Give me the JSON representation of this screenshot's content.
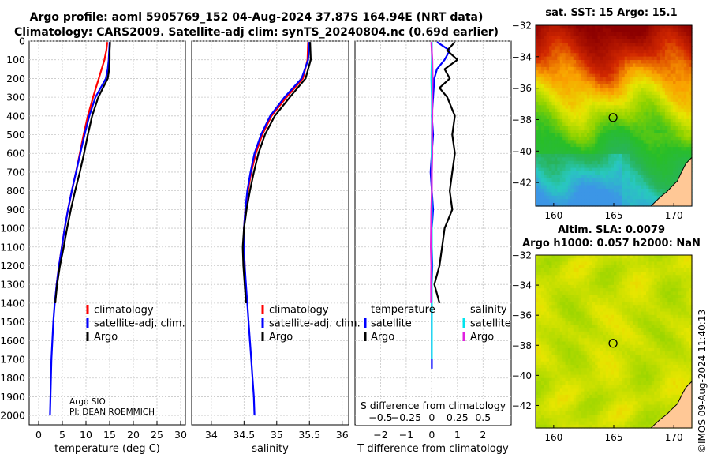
{
  "titles": {
    "line1": "Argo profile: aoml 5905769_152 04-Aug-2024 37.87S 164.94E (NRT data)",
    "line2": "Climatology: CARS2009. Satellite-adj clim: synTS_20240804.nc (0.69d earlier)",
    "sst_map": "sat. SST: 15 Argo: 15.1",
    "sla_line1": "Altim. SLA: 0.0079",
    "sla_line2": "Argo h1000: 0.057 h2000: NaN"
  },
  "stamp": "©IMOS 09-Aug-2024 11:40:13",
  "colors": {
    "argo": "#000000",
    "climatology": "#ff0000",
    "satellite": "#0000ff",
    "sat_temp_diff": "#0000ff",
    "sat_sal_diff": "#00e5ee",
    "argo_sal_diff": "#e020e0"
  },
  "chart_data": [
    {
      "type": "line",
      "id": "temperature",
      "xlabel": "temperature (deg C)",
      "ylabel": "",
      "xlim": [
        -2,
        31
      ],
      "ylim": [
        2050,
        0
      ],
      "xticks": [
        0,
        5,
        10,
        15,
        20,
        25,
        30
      ],
      "yticks": [
        0,
        100,
        200,
        300,
        400,
        500,
        600,
        700,
        800,
        900,
        1000,
        1100,
        1200,
        1300,
        1400,
        1500,
        1600,
        1700,
        1800,
        1900,
        2000
      ],
      "annotation": [
        "Argo SIO",
        "PI: DEAN ROEMMICH"
      ],
      "legend": [
        "climatology",
        "satellite-adj. clim.",
        "Argo"
      ],
      "series": [
        {
          "name": "climatology",
          "color": "#ff0000",
          "depth": [
            5,
            50,
            100,
            150,
            200,
            300,
            400,
            500,
            600,
            700,
            800,
            900,
            1000,
            1100,
            1200,
            1300,
            1400
          ],
          "values": [
            14.5,
            14.3,
            13.9,
            13.3,
            12.7,
            11.5,
            10.4,
            9.5,
            8.7,
            7.9,
            7.0,
            6.2,
            5.5,
            4.9,
            4.3,
            3.8,
            3.5
          ]
        },
        {
          "name": "satellite-adj. clim.",
          "color": "#0000ff",
          "depth": [
            5,
            50,
            100,
            150,
            200,
            300,
            400,
            500,
            600,
            700,
            800,
            900,
            1000,
            1100,
            1200,
            1300,
            1400,
            1500,
            1600,
            1700,
            1800,
            1900,
            2000
          ],
          "values": [
            15.0,
            14.9,
            14.8,
            14.6,
            14.2,
            12.0,
            10.7,
            9.7,
            8.8,
            7.9,
            7.0,
            6.2,
            5.5,
            4.9,
            4.3,
            3.8,
            3.4,
            3.1,
            2.9,
            2.7,
            2.6,
            2.5,
            2.4
          ]
        },
        {
          "name": "Argo",
          "color": "#000000",
          "depth": [
            5,
            50,
            100,
            150,
            200,
            300,
            400,
            500,
            600,
            700,
            800,
            900,
            1000,
            1100,
            1200,
            1300,
            1400
          ],
          "values": [
            15.1,
            15.0,
            15.0,
            14.9,
            14.6,
            12.6,
            11.3,
            10.4,
            9.6,
            8.7,
            7.7,
            6.8,
            6.0,
            5.3,
            4.5,
            3.9,
            3.5
          ]
        }
      ]
    },
    {
      "type": "line",
      "id": "salinity",
      "xlabel": "salinity",
      "xlim": [
        33.7,
        36.1
      ],
      "ylim": [
        2050,
        0
      ],
      "xticks": [
        34,
        34.5,
        35,
        35.5,
        36
      ],
      "legend": [
        "climatology",
        "satellite-adj. clim.",
        "Argo"
      ],
      "series": [
        {
          "name": "climatology",
          "color": "#ff0000",
          "depth": [
            5,
            100,
            200,
            300,
            400,
            500,
            600,
            700,
            800,
            900,
            1000,
            1100,
            1200,
            1300,
            1400
          ],
          "values": [
            35.48,
            35.47,
            35.4,
            35.15,
            34.92,
            34.78,
            34.68,
            34.61,
            34.56,
            34.52,
            34.5,
            34.5,
            34.51,
            34.52,
            34.54
          ]
        },
        {
          "name": "satellite-adj. clim.",
          "color": "#0000ff",
          "depth": [
            5,
            100,
            200,
            300,
            400,
            500,
            600,
            700,
            800,
            900,
            1000,
            1100,
            1200,
            1300,
            1400,
            1500,
            1600,
            1700,
            1800,
            1900,
            2000
          ],
          "values": [
            35.5,
            35.48,
            35.38,
            35.12,
            34.9,
            34.76,
            34.66,
            34.6,
            34.55,
            34.52,
            34.5,
            34.5,
            34.51,
            34.53,
            34.55,
            34.57,
            34.59,
            34.61,
            34.63,
            34.65,
            34.66
          ]
        },
        {
          "name": "Argo",
          "color": "#000000",
          "depth": [
            5,
            100,
            200,
            300,
            400,
            500,
            600,
            700,
            800,
            900,
            1000,
            1100,
            1200,
            1300,
            1400
          ],
          "values": [
            35.51,
            35.52,
            35.44,
            35.2,
            34.97,
            34.82,
            34.72,
            34.65,
            34.59,
            34.54,
            34.5,
            34.48,
            34.49,
            34.51,
            34.53
          ]
        }
      ]
    },
    {
      "type": "line",
      "id": "difference",
      "xlabel": "T difference from climatology",
      "x2label": "S difference from climatology",
      "xlim": [
        -3,
        3.1
      ],
      "ylim": [
        2050,
        0
      ],
      "xticks": [
        -2,
        -1,
        0,
        1,
        2
      ],
      "x2ticks": [
        -0.5,
        -0.25,
        0,
        0.25,
        0.5
      ],
      "legend": {
        "temperature": [
          "satellite",
          "Argo"
        ],
        "salinity": [
          "satellite",
          "Argo"
        ],
        "headers": [
          "temperature",
          "salinity"
        ]
      },
      "series": [
        {
          "name": "temperature satellite",
          "color": "#0000ff",
          "depth": [
            5,
            50,
            100,
            150,
            200,
            300,
            400,
            500,
            600,
            700,
            800,
            900,
            1000,
            1100,
            1200,
            1300,
            1400,
            1500,
            1600,
            1700,
            1750
          ],
          "values": [
            0.2,
            0.7,
            0.5,
            0.2,
            0.1,
            0.05,
            0.0,
            0.05,
            0.0,
            -0.05,
            0.0,
            0.05,
            0.0,
            0.0,
            0.02,
            0.0,
            0.0,
            0.0,
            0.0,
            0.0,
            0.0
          ]
        },
        {
          "name": "temperature Argo",
          "color": "#000000",
          "depth": [
            5,
            50,
            100,
            150,
            200,
            250,
            300,
            400,
            500,
            600,
            700,
            800,
            900,
            1000,
            1100,
            1200,
            1300,
            1350,
            1400
          ],
          "values": [
            0.9,
            0.6,
            1.0,
            0.5,
            0.7,
            0.3,
            0.6,
            0.9,
            0.8,
            0.9,
            0.8,
            0.7,
            0.8,
            0.5,
            0.4,
            0.3,
            0.1,
            0.2,
            0.3
          ]
        },
        {
          "name": "salinity satellite",
          "color": "#00e5ee",
          "depth": [
            5,
            100,
            200,
            300,
            400,
            500,
            600,
            700,
            800,
            900,
            1000,
            1100,
            1200,
            1300,
            1400,
            1500,
            1600,
            1700
          ],
          "values": [
            0.0,
            0.0,
            -0.02,
            0.0,
            0.0,
            0.0,
            -0.01,
            0.0,
            0.0,
            0.0,
            0.0,
            0.0,
            0.0,
            0.0,
            0.0,
            0.0,
            0.0,
            0.0
          ]
        },
        {
          "name": "salinity Argo",
          "color": "#e020e0",
          "depth": [
            5,
            100,
            200,
            300,
            400,
            500,
            600,
            700,
            800,
            900,
            1000,
            1100,
            1200,
            1300,
            1400
          ],
          "values": [
            -0.02,
            0.02,
            0.03,
            0.02,
            0.02,
            0.01,
            0.02,
            0.0,
            0.0,
            -0.02,
            -0.03,
            -0.04,
            -0.02,
            -0.03,
            -0.03
          ]
        }
      ]
    },
    {
      "type": "heatmap",
      "id": "sst_map",
      "title": "sat. SST: 15 Argo: 15.1",
      "xlim": [
        158.5,
        171.5
      ],
      "ylim": [
        -43.5,
        -32
      ],
      "xticks": [
        160,
        165,
        170
      ],
      "yticks": [
        -32,
        -34,
        -36,
        -38,
        -40,
        -42
      ],
      "marker": {
        "lon": 164.94,
        "lat": -37.87
      }
    },
    {
      "type": "heatmap",
      "id": "sla_map",
      "title": "Altim. SLA: 0.0079",
      "xlim": [
        158.5,
        171.5
      ],
      "ylim": [
        -43.5,
        -32
      ],
      "xticks": [
        160,
        165,
        170
      ],
      "yticks": [
        -32,
        -34,
        -36,
        -38,
        -40,
        -42
      ],
      "marker": {
        "lon": 164.94,
        "lat": -37.87
      }
    }
  ]
}
